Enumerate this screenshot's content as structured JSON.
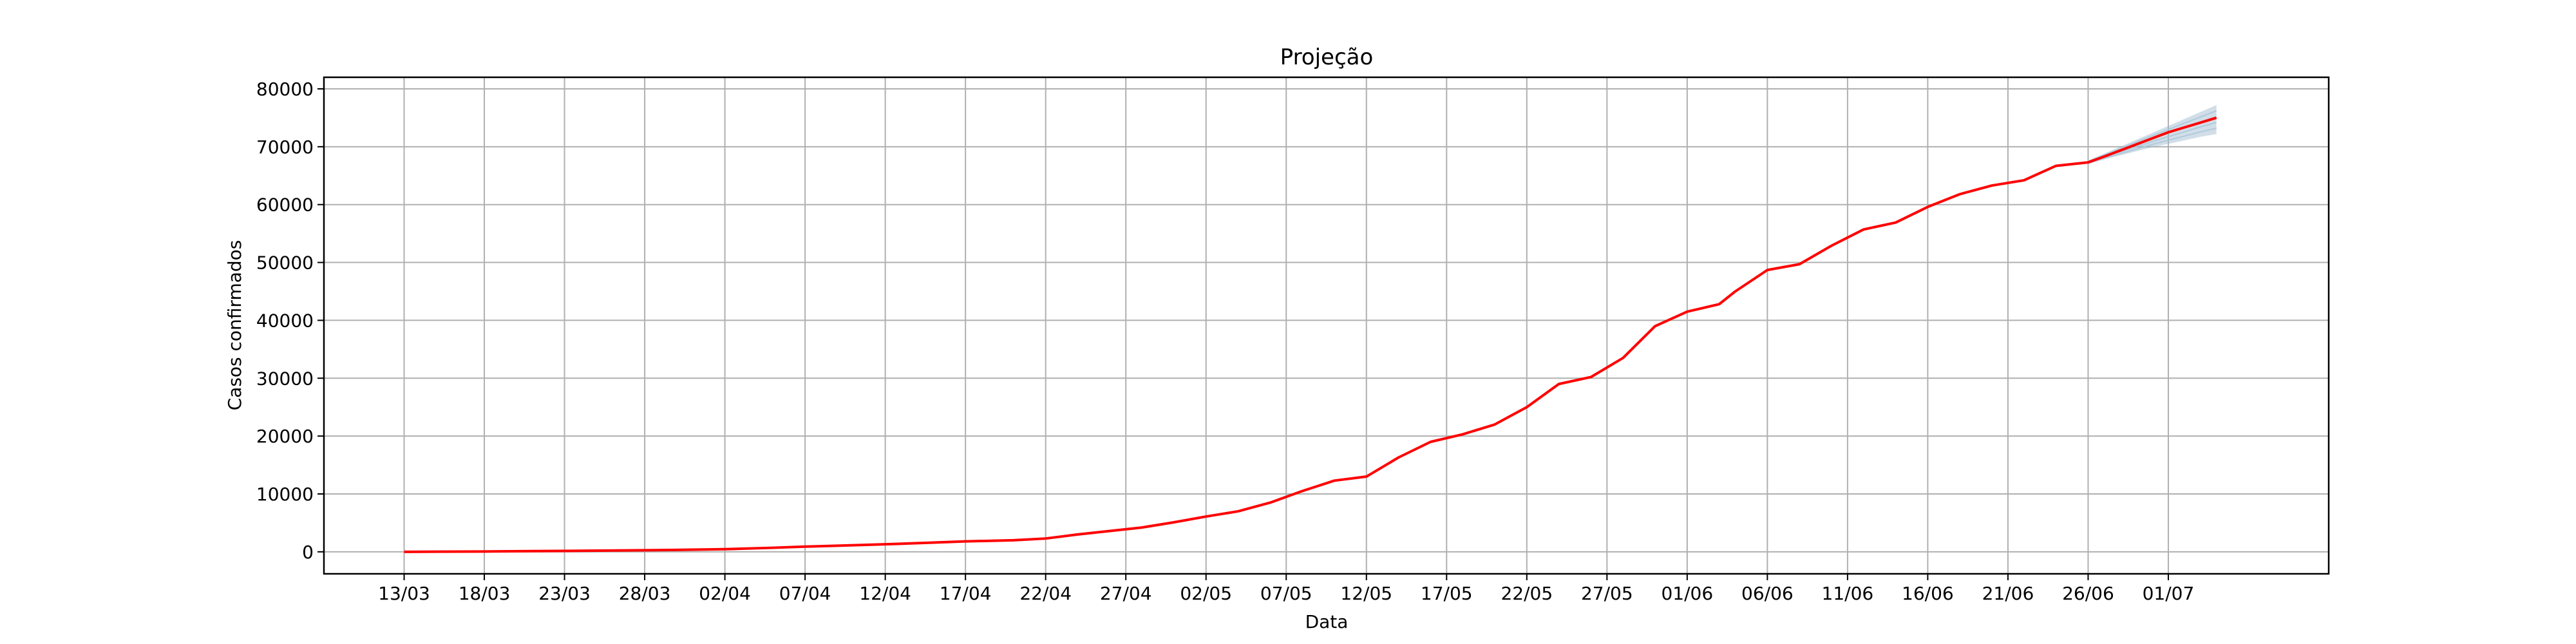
{
  "chart_data": {
    "type": "line",
    "title": "Projeção",
    "xlabel": "Data",
    "ylabel": "Casos confirmados",
    "grid": true,
    "x_tick_labels": [
      "13/03",
      "18/03",
      "23/03",
      "28/03",
      "02/04",
      "07/04",
      "12/04",
      "17/04",
      "22/04",
      "27/04",
      "02/05",
      "07/05",
      "12/05",
      "17/05",
      "22/05",
      "27/05",
      "01/06",
      "06/06",
      "11/06",
      "16/06",
      "21/06",
      "26/06",
      "01/07"
    ],
    "y_ticks": [
      0,
      10000,
      20000,
      30000,
      40000,
      50000,
      60000,
      70000,
      80000
    ],
    "ylim": [
      -3800,
      82000
    ],
    "x_day_range": [
      "08/03",
      "11/07"
    ],
    "colors": {
      "actual": "#ff0000",
      "projection_band": "#9ab6cc",
      "projection_lines": "#a8c4d8"
    },
    "series": [
      {
        "type": "line",
        "color": "#ff0000",
        "x": [
          "13/03",
          "15/03",
          "18/03",
          "21/03",
          "24/03",
          "27/03",
          "30/03",
          "02/04",
          "05/04",
          "07/04",
          "09/04",
          "12/04",
          "15/04",
          "17/04",
          "20/04",
          "22/04",
          "24/04",
          "26/04",
          "28/04",
          "30/04",
          "02/05",
          "04/05",
          "06/05",
          "08/05",
          "10/05",
          "12/05",
          "14/05",
          "16/05",
          "18/05",
          "20/05",
          "22/05",
          "24/05",
          "26/05",
          "28/05",
          "30/05",
          "01/06",
          "03/06",
          "04/06",
          "06/06",
          "08/06",
          "10/06",
          "12/06",
          "14/06",
          "16/06",
          "18/06",
          "20/06",
          "22/06",
          "24/06",
          "26/06",
          "27/06",
          "01/07",
          "04/07"
        ],
        "values": [
          0,
          20,
          60,
          120,
          180,
          250,
          330,
          450,
          700,
          900,
          1050,
          1300,
          1600,
          1800,
          2000,
          2300,
          3000,
          3600,
          4200,
          5100,
          6100,
          7000,
          8500,
          10500,
          12300,
          13000,
          16300,
          19000,
          20300,
          22000,
          25000,
          29000,
          30200,
          33500,
          39000,
          41500,
          42800,
          45000,
          48700,
          49700,
          52900,
          55700,
          56900,
          59600,
          61800,
          63300,
          64200,
          66700,
          67300,
          68300,
          72500,
          75000
        ]
      }
    ],
    "projection": {
      "x": [
        "26/06",
        "27/06",
        "28/06",
        "29/06",
        "30/06",
        "01/07",
        "02/07",
        "03/07",
        "04/07"
      ],
      "mean": [
        67300,
        68300,
        69200,
        70100,
        71100,
        72000,
        72900,
        73800,
        74800
      ],
      "lower": [
        67000,
        67800,
        68500,
        69200,
        69900,
        70500,
        71100,
        71700,
        72200
      ],
      "upper": [
        67600,
        68800,
        70000,
        71200,
        72400,
        73600,
        74800,
        76000,
        77200
      ]
    }
  }
}
